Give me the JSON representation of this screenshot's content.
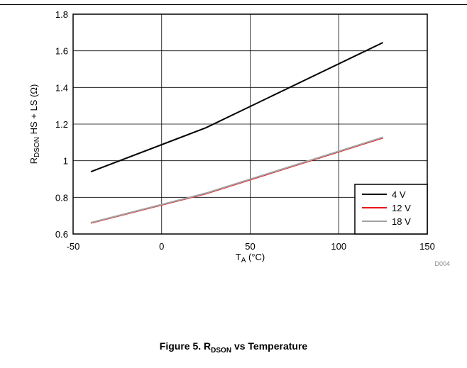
{
  "chart_data": {
    "type": "line",
    "xlabel": {
      "main": "T",
      "sub": "A",
      "rest": " (°C)"
    },
    "ylabel": {
      "main": "R",
      "sub": "DSON",
      "rest": " HS + LS (Ω)"
    },
    "xlim": [
      -50,
      150
    ],
    "ylim": [
      0.6,
      1.8
    ],
    "xticks": [
      -50,
      0,
      50,
      100,
      150
    ],
    "yticks": [
      0.6,
      0.8,
      1,
      1.2,
      1.4,
      1.6,
      1.8
    ],
    "xtick_labels": [
      "-50",
      "0",
      "50",
      "100",
      "150"
    ],
    "ytick_labels": [
      "0.6",
      "0.8",
      "1",
      "1.2",
      "1.4",
      "1.6",
      "1.8"
    ],
    "grid": true,
    "legend_position": "bottom-right",
    "series": [
      {
        "name": "4 V",
        "color": "#000000",
        "x": [
          -40,
          25,
          125
        ],
        "y": [
          0.94,
          1.18,
          1.645
        ]
      },
      {
        "name": "12 V",
        "color": "#e8151b",
        "x": [
          -40,
          25,
          125
        ],
        "y": [
          0.66,
          0.82,
          1.125
        ]
      },
      {
        "name": "18 V",
        "color": "#a3a3a3",
        "x": [
          -40,
          25,
          125
        ],
        "y": [
          0.662,
          0.823,
          1.128
        ]
      }
    ],
    "note": "D004"
  },
  "caption": {
    "prefix": "Figure 5. R",
    "sub": "DSON",
    "rest": " vs Temperature"
  }
}
